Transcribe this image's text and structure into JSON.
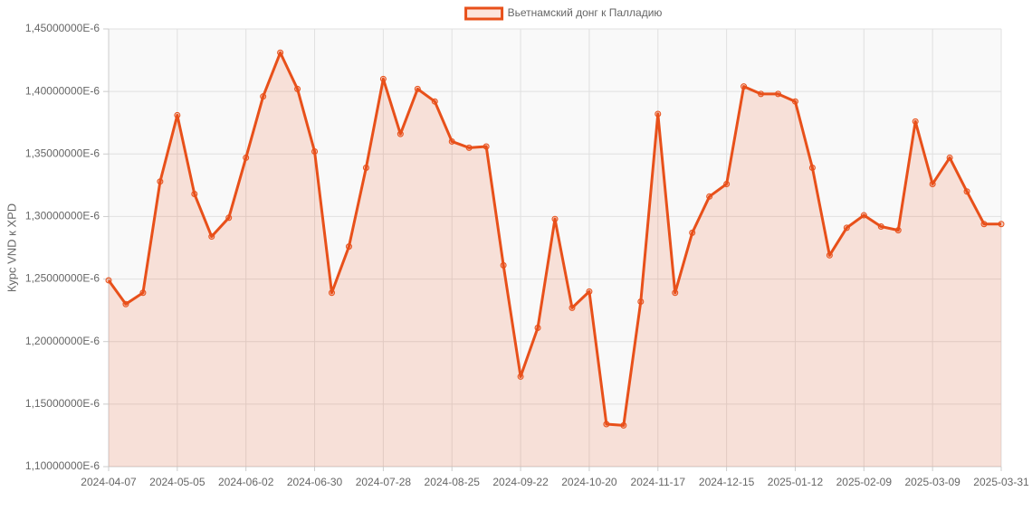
{
  "chart_data": {
    "type": "line",
    "y_label": "Курс VND к XPD",
    "categories": [
      "2024-04-07",
      null,
      null,
      null,
      "2024-05-05",
      null,
      null,
      null,
      "2024-06-02",
      null,
      null,
      null,
      "2024-06-30",
      null,
      null,
      null,
      "2024-07-28",
      null,
      null,
      null,
      "2024-08-25",
      null,
      null,
      null,
      "2024-09-22",
      null,
      null,
      null,
      "2024-10-20",
      null,
      null,
      null,
      "2024-11-17",
      null,
      null,
      null,
      "2024-12-15",
      null,
      null,
      null,
      "2025-01-12",
      null,
      null,
      null,
      "2025-02-09",
      null,
      null,
      null,
      "2025-03-09",
      null,
      null,
      null,
      "2025-03-31"
    ],
    "series": [
      {
        "name": "Вьетнамский донг к Палладию",
        "color": "#e8501a",
        "values": [
          1.249e-06,
          1.23e-06,
          1.239e-06,
          1.328e-06,
          1.381e-06,
          1.318e-06,
          1.284e-06,
          1.299e-06,
          1.347e-06,
          1.396e-06,
          1.431e-06,
          1.402e-06,
          1.352e-06,
          1.239e-06,
          1.276e-06,
          1.339e-06,
          1.41e-06,
          1.366e-06,
          1.402e-06,
          1.392e-06,
          1.36e-06,
          1.355e-06,
          1.356e-06,
          1.261e-06,
          1.172e-06,
          1.211e-06,
          1.298e-06,
          1.227e-06,
          1.24e-06,
          1.134e-06,
          1.133e-06,
          1.232e-06,
          1.382e-06,
          1.239e-06,
          1.287e-06,
          1.316e-06,
          1.326e-06,
          1.404e-06,
          1.398e-06,
          1.398e-06,
          1.392e-06,
          1.339e-06,
          1.269e-06,
          1.291e-06,
          1.301e-06,
          1.292e-06,
          1.289e-06,
          1.376e-06,
          1.326e-06,
          1.347e-06,
          1.32e-06,
          1.294e-06,
          1.294e-06
        ]
      }
    ],
    "ylim": [
      1.1e-06,
      1.45e-06
    ],
    "yticks": [
      {
        "value": 1.1e-06,
        "label": "1,10000000E-6"
      },
      {
        "value": 1.15e-06,
        "label": "1,15000000E-6"
      },
      {
        "value": 1.2e-06,
        "label": "1,20000000E-6"
      },
      {
        "value": 1.25e-06,
        "label": "1,25000000E-6"
      },
      {
        "value": 1.3e-06,
        "label": "1,30000000E-6"
      },
      {
        "value": 1.35e-06,
        "label": "1,35000000E-6"
      },
      {
        "value": 1.4e-06,
        "label": "1,40000000E-6"
      },
      {
        "value": 1.45e-06,
        "label": "1,45000000E-6"
      }
    ],
    "grid": true,
    "fill_area": true,
    "legend": "top"
  }
}
